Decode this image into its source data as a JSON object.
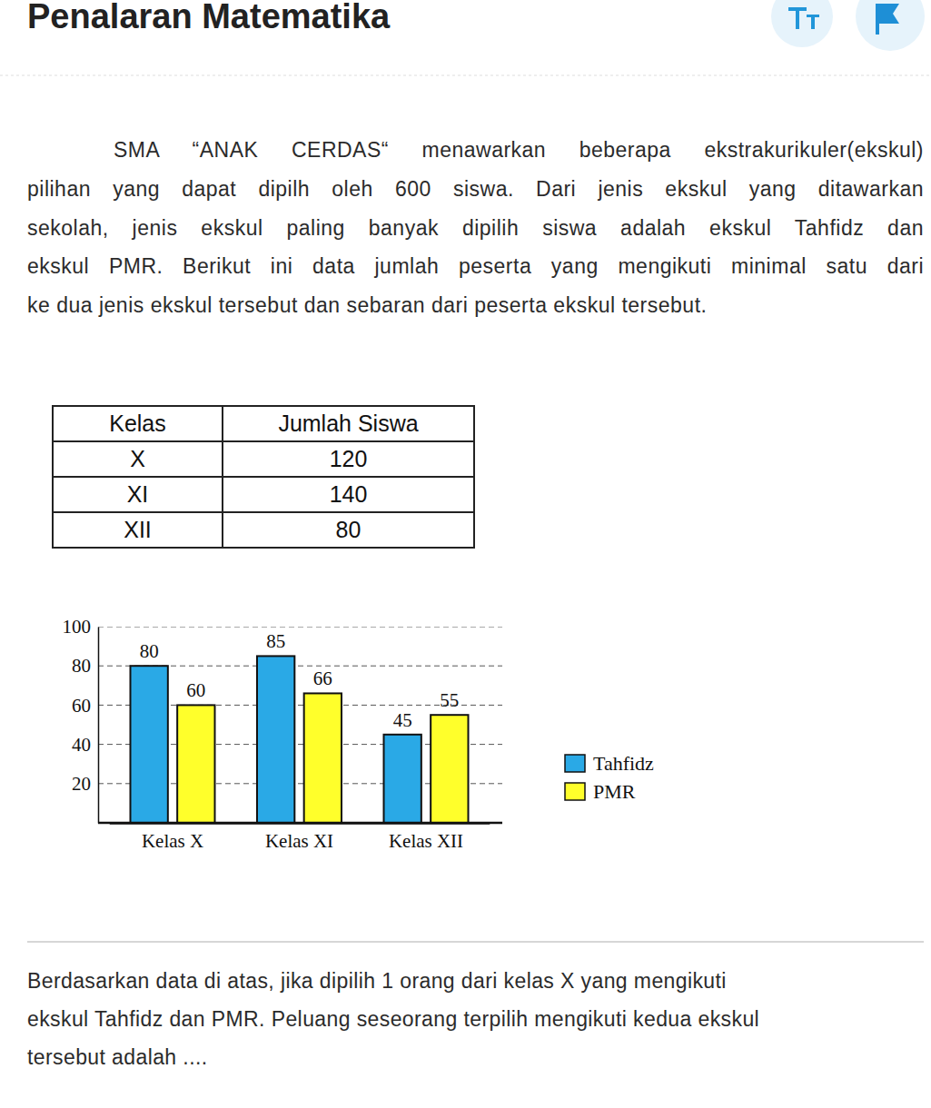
{
  "header": {
    "title": "Penalaran Matematika"
  },
  "passage": {
    "lines": [
      "SMA “ANAK CERDAS“ menawarkan beberapa ekstrakurikuler(ekskul)",
      "pilihan yang dapat dipilh oleh 600 siswa. Dari jenis ekskul yang ditawarkan",
      "sekolah, jenis ekskul paling banyak dipilih siswa adalah ekskul Tahfidz dan",
      "ekskul PMR. Berikut ini data jumlah peserta yang mengikuti minimal satu dari",
      "ke dua jenis ekskul tersebut dan sebaran dari peserta ekskul tersebut."
    ]
  },
  "table": {
    "header": [
      "Kelas",
      "Jumlah Siswa"
    ],
    "rows": [
      [
        "X",
        120
      ],
      [
        "XI",
        140
      ],
      [
        "XII",
        80
      ]
    ]
  },
  "chart_data": {
    "type": "bar",
    "categories": [
      "Kelas X",
      "Kelas XI",
      "Kelas XII"
    ],
    "series": [
      {
        "name": "Tahfidz",
        "color": "#2aa9e6",
        "values": [
          80,
          85,
          45
        ]
      },
      {
        "name": "PMR",
        "color": "#ffff2b",
        "values": [
          60,
          66,
          55
        ]
      }
    ],
    "ylim": [
      0,
      100
    ],
    "yticks": [
      20,
      40,
      60,
      80,
      100
    ],
    "grid": true,
    "data_labels": true,
    "legend": "right"
  },
  "question": {
    "lines": [
      "Berdasarkan data di atas, jika dipilih 1 orang dari kelas X yang mengikuti",
      "ekskul Tahfidz dan PMR. Peluang seseorang terpilih mengikuti kedua ekskul",
      "tersebut adalah ...."
    ]
  }
}
